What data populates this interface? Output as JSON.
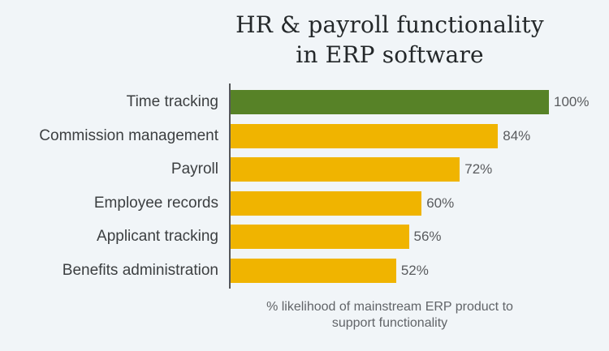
{
  "colors": {
    "background": "#f1f5f8",
    "title": "#24282a",
    "category_label": "#3c3f41",
    "value_label": "#595b5e",
    "caption": "#616468",
    "axis": "#54565a",
    "green": "#578227",
    "yellow": "#f0b400"
  },
  "chart_data": {
    "type": "bar",
    "orientation": "horizontal",
    "title": "HR & payroll functionality in ERP software",
    "title_lines": [
      "HR & payroll functionality",
      "in ERP software"
    ],
    "categories": [
      "Time tracking",
      "Commission management",
      "Payroll",
      "Employee records",
      "Applicant tracking",
      "Benefits administration"
    ],
    "values": [
      100,
      84,
      72,
      60,
      56,
      52
    ],
    "value_labels": [
      "100%",
      "84%",
      "72%",
      "60%",
      "56%",
      "52%"
    ],
    "bar_colors": [
      "#578227",
      "#f0b400",
      "#f0b400",
      "#f0b400",
      "#f0b400",
      "#f0b400"
    ],
    "xlabel": "% likelihood of mainstream ERP product to support functionality",
    "caption_lines": [
      "% likelihood of mainstream ERP product to",
      "support functionality"
    ],
    "xlim": [
      0,
      100
    ],
    "grid": false,
    "legend": false
  }
}
